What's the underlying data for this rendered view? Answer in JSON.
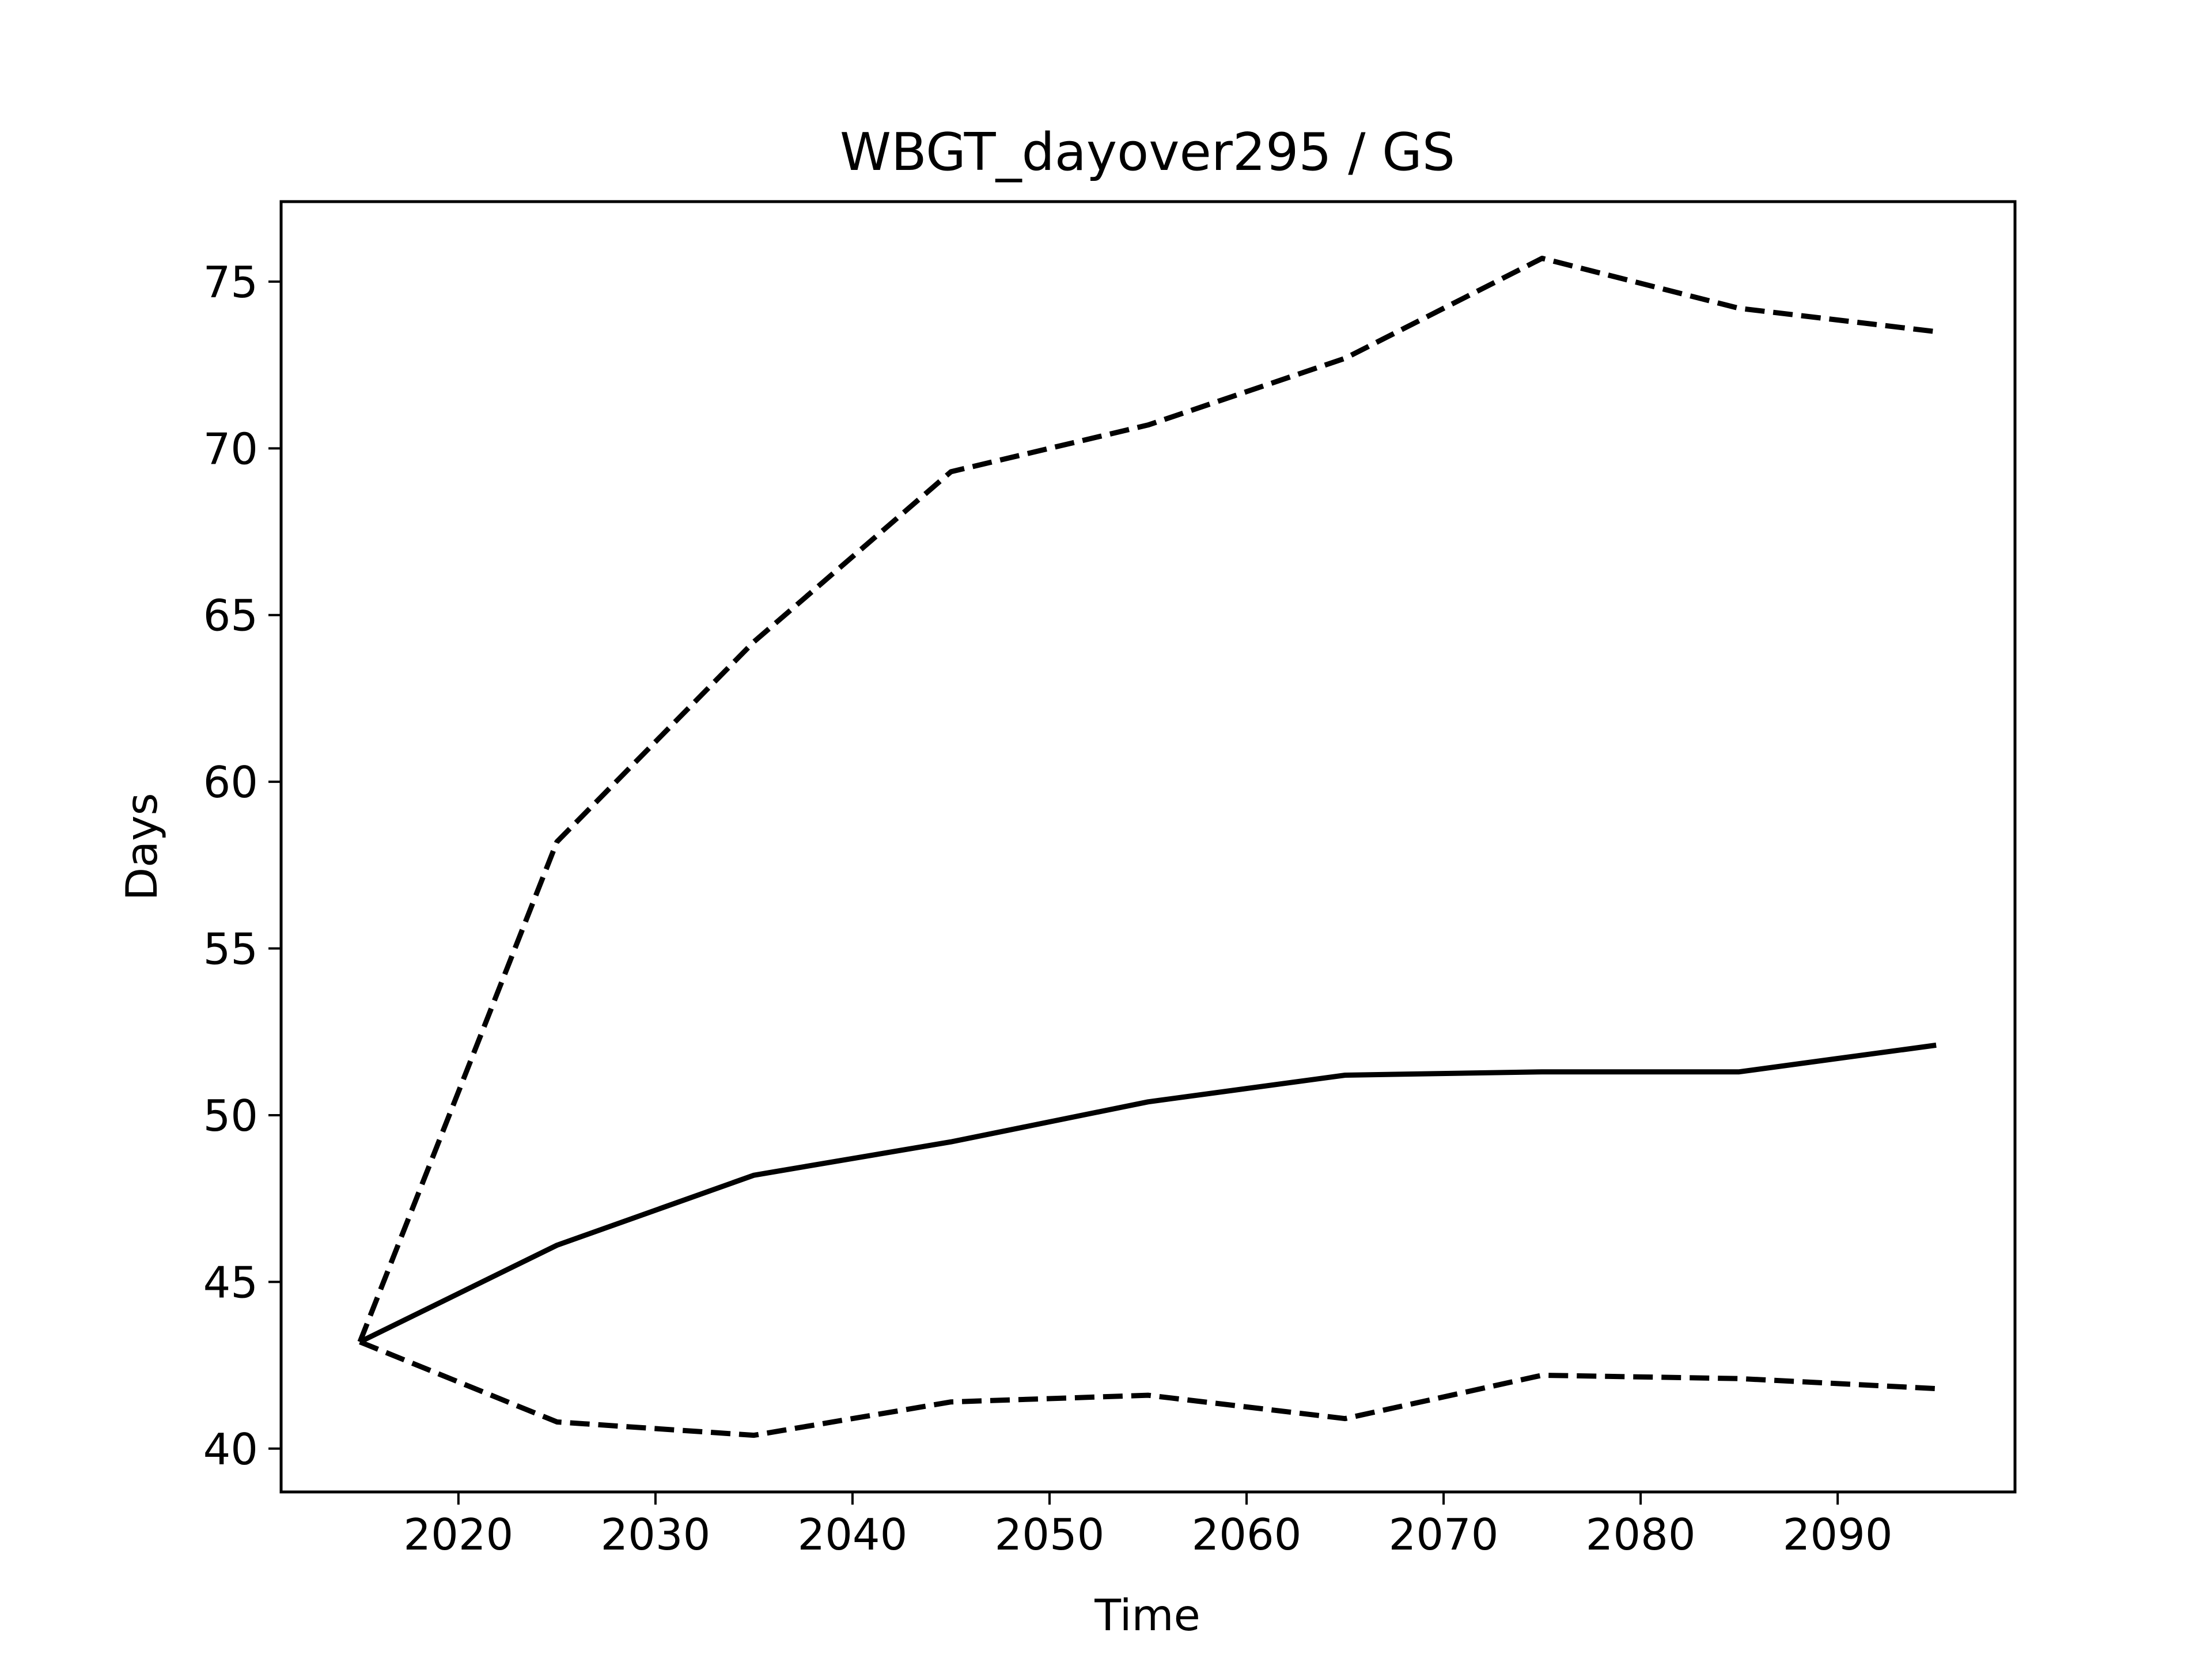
{
  "chart_data": {
    "type": "line",
    "title": "WBGT_dayover295 / GS",
    "xlabel": "Time",
    "ylabel": "Days",
    "xlim": [
      2011,
      2099
    ],
    "ylim": [
      38.7,
      77.4
    ],
    "xticks": [
      2020,
      2030,
      2040,
      2050,
      2060,
      2070,
      2080,
      2090
    ],
    "yticks": [
      40,
      45,
      50,
      55,
      60,
      65,
      70,
      75
    ],
    "grid": false,
    "x": [
      2015,
      2025,
      2035,
      2045,
      2055,
      2065,
      2075,
      2085,
      2095
    ],
    "series": [
      {
        "style": "solid",
        "color": "#000000",
        "values": [
          43.2,
          46.1,
          48.2,
          49.2,
          50.4,
          51.2,
          51.3,
          51.3,
          52.1
        ]
      },
      {
        "style": "dashed",
        "color": "#000000",
        "values": [
          43.2,
          58.2,
          64.2,
          69.3,
          70.7,
          72.7,
          75.7,
          74.2,
          73.5
        ]
      },
      {
        "style": "dashed",
        "color": "#000000",
        "values": [
          43.2,
          40.8,
          40.4,
          41.4,
          41.6,
          40.9,
          42.2,
          42.1,
          41.8
        ]
      }
    ]
  }
}
